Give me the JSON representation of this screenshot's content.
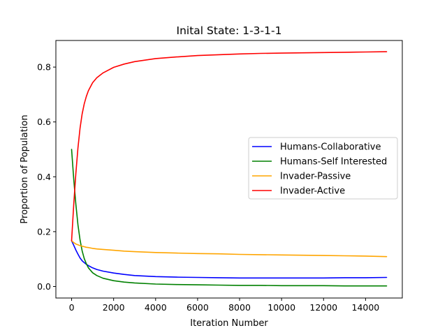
{
  "chart_data": {
    "type": "line",
    "title": "Inital State: 1-3-1-1",
    "xlabel": "Iteration Number",
    "ylabel": "Proportion of Population",
    "xlim": [
      -750,
      15750
    ],
    "ylim": [
      -0.042,
      0.897
    ],
    "xticks": [
      0,
      2000,
      4000,
      6000,
      8000,
      10000,
      12000,
      14000
    ],
    "yticks": [
      0.0,
      0.2,
      0.4,
      0.6,
      0.8
    ],
    "ytick_labels": [
      "0.0",
      "0.2",
      "0.4",
      "0.6",
      "0.8"
    ],
    "grid": false,
    "legend_position": "center-right",
    "x": [
      0,
      100,
      200,
      300,
      400,
      500,
      600,
      700,
      800,
      1000,
      1200,
      1500,
      2000,
      2500,
      3000,
      4000,
      5000,
      6000,
      7000,
      8000,
      9000,
      10000,
      11000,
      12000,
      13000,
      14000,
      15000
    ],
    "series": [
      {
        "name": "Humans-Collaborative",
        "color": "#0000ff",
        "values": [
          0.167,
          0.15,
          0.133,
          0.118,
          0.104,
          0.094,
          0.087,
          0.081,
          0.076,
          0.068,
          0.062,
          0.056,
          0.049,
          0.044,
          0.04,
          0.036,
          0.034,
          0.033,
          0.032,
          0.031,
          0.031,
          0.031,
          0.031,
          0.031,
          0.032,
          0.032,
          0.033
        ]
      },
      {
        "name": "Humans-Self Interested",
        "color": "#008000",
        "values": [
          0.5,
          0.39,
          0.3,
          0.225,
          0.17,
          0.13,
          0.102,
          0.083,
          0.068,
          0.05,
          0.04,
          0.03,
          0.021,
          0.016,
          0.013,
          0.009,
          0.007,
          0.006,
          0.005,
          0.004,
          0.004,
          0.003,
          0.003,
          0.003,
          0.002,
          0.002,
          0.002
        ]
      },
      {
        "name": "Invader-Passive",
        "color": "#ffa500",
        "values": [
          0.167,
          0.16,
          0.155,
          0.152,
          0.149,
          0.147,
          0.145,
          0.143,
          0.142,
          0.139,
          0.137,
          0.135,
          0.132,
          0.129,
          0.127,
          0.124,
          0.122,
          0.12,
          0.119,
          0.117,
          0.116,
          0.115,
          0.114,
          0.113,
          0.112,
          0.111,
          0.109
        ]
      },
      {
        "name": "Invader-Active",
        "color": "#ff0000",
        "values": [
          0.167,
          0.3,
          0.412,
          0.505,
          0.577,
          0.629,
          0.666,
          0.693,
          0.714,
          0.743,
          0.761,
          0.779,
          0.799,
          0.811,
          0.82,
          0.831,
          0.837,
          0.842,
          0.845,
          0.848,
          0.85,
          0.851,
          0.852,
          0.853,
          0.854,
          0.855,
          0.856
        ]
      }
    ]
  }
}
